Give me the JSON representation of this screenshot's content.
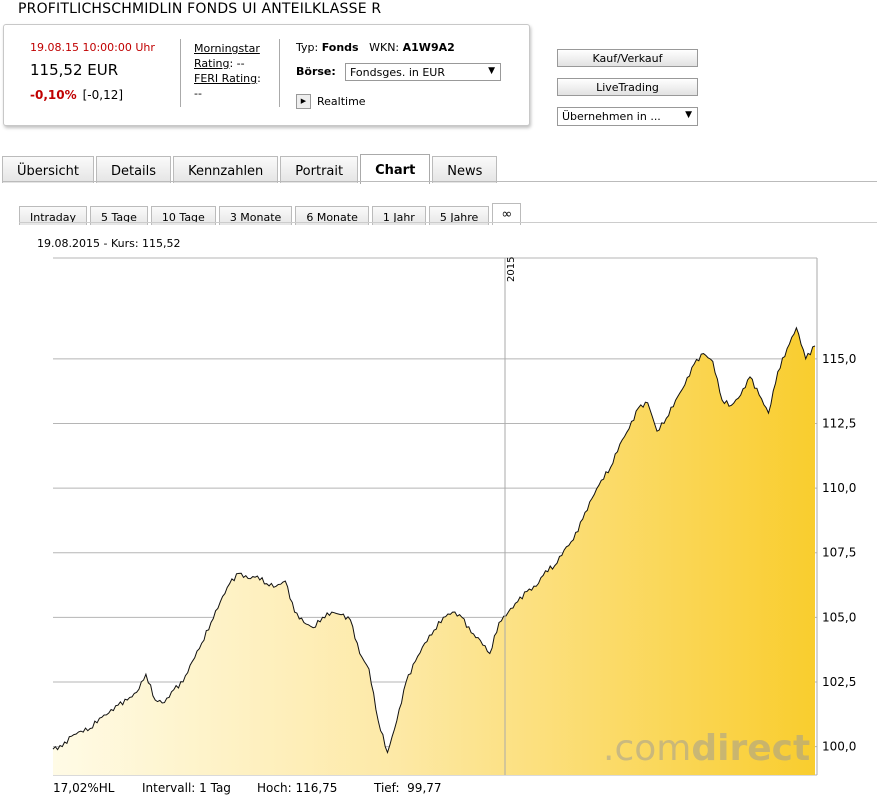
{
  "header": {
    "title": "PROFITLICHSCHMIDLIN FONDS UI ANTEILKLASSE R"
  },
  "quote": {
    "date_time": "19.08.15  10:00:00 Uhr",
    "price": "115,52 EUR",
    "change_pct": "-0,10%",
    "change_abs": "[-0,12]"
  },
  "ratings": {
    "morningstar_label": "Morningstar",
    "morningstar_rating_label": "Rating",
    "morningstar_value": ": --",
    "feri_label": "FERI Rating",
    "feri_colon": ":",
    "feri_value": "--"
  },
  "meta": {
    "typ_label": "Typ:",
    "typ_value": "Fonds",
    "wkn_label": "WKN:",
    "wkn_value": "A1W9A2",
    "boerse_label": "Börse:",
    "boerse_value": "Fondsges. in EUR",
    "realtime_label": "Realtime"
  },
  "buttons": {
    "kauf": "Kauf/Verkauf",
    "live": "LiveTrading",
    "uebernehmen": "Übernehmen in ..."
  },
  "tabs": [
    "Übersicht",
    "Details",
    "Kennzahlen",
    "Portrait",
    "Chart",
    "News"
  ],
  "period_tabs": [
    "Intraday",
    "5 Tage",
    "10 Tage",
    "3 Monate",
    "6 Monate",
    "1 Jahr",
    "5 Jahre",
    "∞"
  ],
  "chart": {
    "kurs_label": "19.08.2015  -  Kurs: 115,52",
    "watermark_a": ".com",
    "watermark_b": "direct",
    "year_label": "2015"
  },
  "footer": {
    "hl": "17,02%HL",
    "intervall": "Intervall: 1 Tag",
    "hoch_label": "Hoch:",
    "hoch_value": "116,75",
    "tief_label": "Tief:",
    "tief_value": "99,77"
  },
  "chart_data": {
    "type": "area",
    "ylim": [
      98.9,
      118.9
    ],
    "yticks": [
      "115,0",
      "112,5",
      "110,0",
      "107,5",
      "105,0",
      "102,5",
      "100,0"
    ],
    "ytick_values": [
      115,
      112.5,
      110,
      107.5,
      105,
      102.5,
      100
    ],
    "series": [
      {
        "values": [
          99.9,
          100.0,
          100.4,
          100.6,
          100.7,
          101.1,
          101.3,
          101.6,
          101.8,
          102.1,
          102.8,
          101.8,
          101.7,
          102.2,
          102.5,
          103.3,
          104.0,
          104.8,
          105.6,
          106.3,
          106.7,
          106.5,
          106.6,
          106.3,
          106.2,
          106.4,
          105.2,
          104.8,
          104.6,
          105.0,
          105.2,
          105.1,
          104.9,
          103.6,
          103.0,
          101.0,
          99.77,
          101.0,
          102.5,
          103.3,
          104.0,
          104.5,
          105.0,
          105.2,
          105.0,
          104.4,
          104.1,
          103.6,
          104.8,
          105.2,
          105.6,
          106.0,
          106.2,
          106.8,
          107.0,
          107.6,
          108.0,
          108.8,
          109.6,
          110.3,
          110.8,
          111.7,
          112.3,
          113.1,
          113.3,
          112.2,
          112.7,
          113.4,
          114.0,
          114.8,
          115.2,
          114.9,
          113.4,
          113.2,
          113.6,
          114.3,
          113.6,
          112.9,
          114.5,
          115.4,
          116.2,
          115.0,
          115.5
        ]
      }
    ]
  }
}
